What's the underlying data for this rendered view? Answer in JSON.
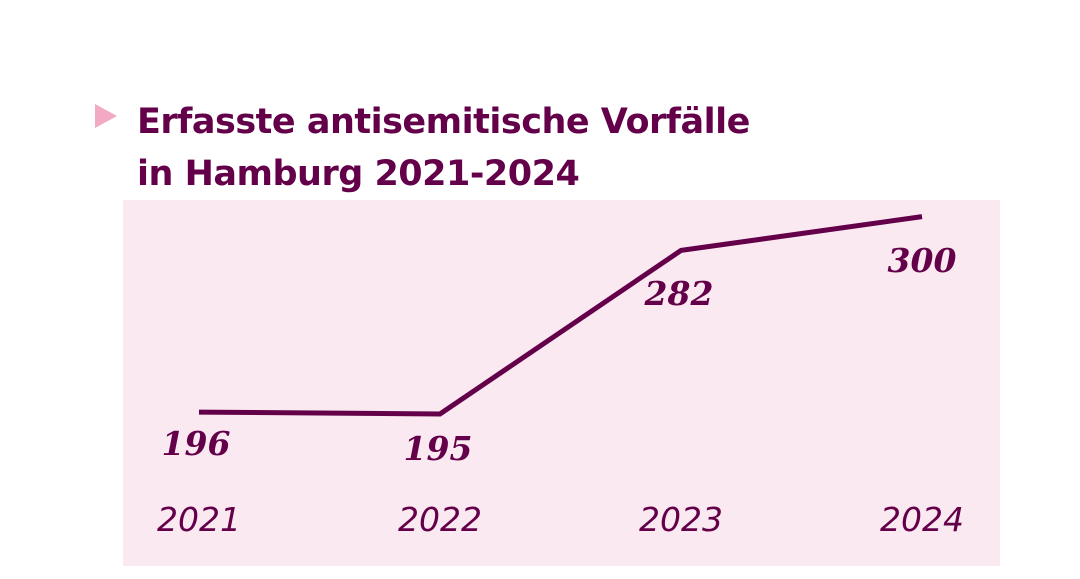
{
  "chart_data": {
    "type": "line",
    "title": "Erfasste antisemitische Vorfälle in Hamburg 2021-2024",
    "title_lines": [
      "Erfasste antisemitische Vorfälle",
      "in Hamburg 2021-2024"
    ],
    "categories": [
      "2021",
      "2022",
      "2023",
      "2024"
    ],
    "values": [
      196,
      195,
      282,
      300
    ],
    "data_labels": [
      "196",
      "195",
      "282",
      "300"
    ],
    "xlabel": "",
    "ylabel": "",
    "grid": false,
    "colors": {
      "line": "#64004a",
      "background": "#fbe9f1",
      "marker": "#f2a9c4",
      "text": "#64004a"
    }
  }
}
